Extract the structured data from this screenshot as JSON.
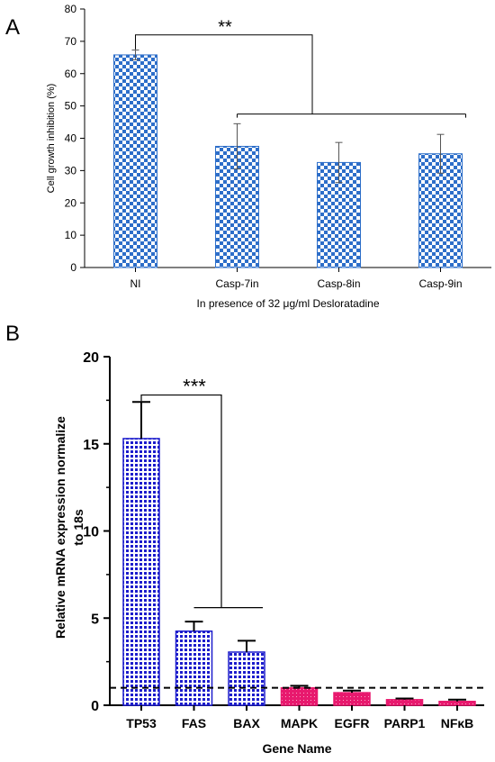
{
  "panels": {
    "a_label": "A",
    "b_label": "B"
  },
  "chart_data": [
    {
      "type": "bar",
      "panel": "A",
      "categories": [
        "NI",
        "Casp-7in",
        "Casp-8in",
        "Casp-9in"
      ],
      "values": [
        65.8,
        37.5,
        32.5,
        35.2
      ],
      "errors": [
        1.5,
        7.0,
        6.2,
        6.0
      ],
      "ylabel": "Cell growth inhibition (%)",
      "xlabel": "In presence of 32 μg/ml Desloratadine",
      "ylim": [
        0,
        80
      ],
      "yticks": [
        0,
        10,
        20,
        30,
        40,
        50,
        60,
        70,
        80
      ],
      "bar_pattern": "blue-white checkerboard",
      "bar_color": "#2d6ec9",
      "annotation": "**"
    },
    {
      "type": "bar",
      "panel": "B",
      "categories": [
        "TP53",
        "FAS",
        "BAX",
        "MAPK",
        "EGFR",
        "PARP1",
        "NFκB"
      ],
      "values": [
        15.3,
        4.25,
        3.05,
        1.0,
        0.72,
        0.32,
        0.22
      ],
      "errors": [
        2.1,
        0.55,
        0.65,
        0.12,
        0.12,
        0.07,
        0.1
      ],
      "ylabel": "Relative  mRNA expression  normalize to 18s",
      "xlabel": "Gene Name",
      "ylim": [
        0,
        20
      ],
      "yticks": [
        0,
        5,
        10,
        15,
        20
      ],
      "reference_line": 1,
      "bar_colors": [
        "#1c1ccc",
        "#1c1ccc",
        "#1c1ccc",
        "#e8196e",
        "#e8196e",
        "#e8196e",
        "#e8196e"
      ],
      "annotation": "***"
    }
  ]
}
